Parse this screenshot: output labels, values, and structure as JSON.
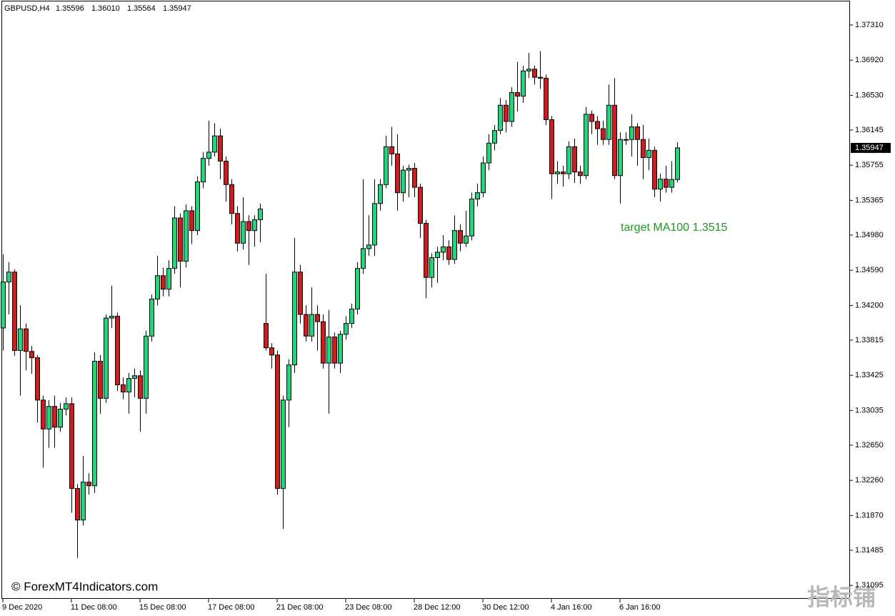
{
  "chart_data": {
    "type": "candlestick",
    "title": "GBPUSD,H4",
    "header_values": [
      "1.35596",
      "1.36010",
      "1.35564",
      "1.35947"
    ],
    "annotation": "target MA100 1.3515",
    "watermark": "© ForexMT4Indicators.com",
    "logo": "指标铺",
    "up_color": "#1fd67a",
    "down_color": "#d11a1a",
    "annotation_color": "#1e9a1e",
    "last_price": {
      "value": 1.35947,
      "label": "1.35947"
    },
    "ylim": [
      1.30946,
      1.37587
    ],
    "yticks": [
      {
        "value": 1.3731,
        "label": "1.37310"
      },
      {
        "value": 1.3692,
        "label": "1.36920"
      },
      {
        "value": 1.3653,
        "label": "1.36530"
      },
      {
        "value": 1.36145,
        "label": "1.36145"
      },
      {
        "value": 1.35755,
        "label": "1.35755"
      },
      {
        "value": 1.35365,
        "label": "1.35365"
      },
      {
        "value": 1.3498,
        "label": "1.34980"
      },
      {
        "value": 1.3459,
        "label": "1.34590"
      },
      {
        "value": 1.342,
        "label": "1.34200"
      },
      {
        "value": 1.33815,
        "label": "1.33815"
      },
      {
        "value": 1.33425,
        "label": "1.33425"
      },
      {
        "value": 1.33035,
        "label": "1.33035"
      },
      {
        "value": 1.3265,
        "label": "1.32650"
      },
      {
        "value": 1.3226,
        "label": "1.32260"
      },
      {
        "value": 1.3187,
        "label": "1.31870"
      },
      {
        "value": 1.31485,
        "label": "1.31485"
      },
      {
        "value": 1.31095,
        "label": "1.31095"
      }
    ],
    "categories": [
      "9 Dec 2020",
      null,
      null,
      null,
      null,
      null,
      null,
      null,
      null,
      null,
      null,
      null,
      "11 Dec 08:00",
      null,
      null,
      null,
      null,
      null,
      null,
      null,
      null,
      null,
      null,
      null,
      "15 Dec 08:00",
      null,
      null,
      null,
      null,
      null,
      null,
      null,
      null,
      null,
      null,
      null,
      "17 Dec 08:00",
      null,
      null,
      null,
      null,
      null,
      null,
      null,
      null,
      null,
      null,
      null,
      "21 Dec 08:00",
      null,
      null,
      null,
      null,
      null,
      null,
      null,
      null,
      null,
      null,
      null,
      "23 Dec 08:00",
      null,
      null,
      null,
      null,
      null,
      null,
      null,
      null,
      null,
      null,
      null,
      "28 Dec 12:00",
      null,
      null,
      null,
      null,
      null,
      null,
      null,
      null,
      null,
      null,
      null,
      "30 Dec 12:00",
      null,
      null,
      null,
      null,
      null,
      null,
      null,
      null,
      null,
      null,
      null,
      "4 Jan 16:00",
      null,
      null,
      null,
      null,
      null,
      null,
      null,
      null,
      null,
      null,
      null,
      "6 Jan 16:00",
      null,
      null,
      null,
      null,
      null,
      null,
      null,
      null,
      null,
      null
    ],
    "open": [
      1.3395,
      1.3446,
      1.3457,
      1.337,
      1.3394,
      1.3369,
      1.3362,
      1.3315,
      1.3283,
      1.3308,
      1.3285,
      1.3305,
      1.3311,
      1.3217,
      1.3182,
      1.3224,
      1.322,
      1.3358,
      1.3317,
      1.3406,
      1.3408,
      1.3332,
      1.3324,
      1.3339,
      1.3342,
      1.3317,
      1.3386,
      1.3427,
      1.3453,
      1.3438,
      1.3461,
      1.3517,
      1.3469,
      1.3525,
      1.3503,
      1.3557,
      1.3583,
      1.359,
      1.3608,
      1.358,
      1.3554,
      1.3522,
      1.3489,
      1.3513,
      1.3503,
      1.3515,
      1.34,
      1.3373,
      1.3365,
      1.3217,
      1.3315,
      1.3354,
      1.3457,
      1.341,
      1.3386,
      1.341,
      1.3402,
      1.3356,
      1.3385,
      1.3356,
      1.3388,
      1.34,
      1.3416,
      1.3461,
      1.3483,
      1.3487,
      1.3533,
      1.3554,
      1.3596,
      1.3588,
      1.3545,
      1.357,
      1.3572,
      1.3551,
      1.3511,
      1.3451,
      1.3473,
      1.3479,
      1.3485,
      1.3471,
      1.3503,
      1.3489,
      1.3497,
      1.3538,
      1.3545,
      1.3578,
      1.36,
      1.3614,
      1.3642,
      1.3624,
      1.3656,
      1.3652,
      1.368,
      1.3682,
      1.3673,
      1.3672,
      1.3626,
      1.3566,
      1.3568,
      1.3566,
      1.3596,
      1.3568,
      1.3564,
      1.3632,
      1.3624,
      1.3616,
      1.3604,
      1.3642,
      1.3564,
      1.3604,
      1.3604,
      1.3618,
      1.3604,
      1.3584,
      1.3592,
      1.3549,
      1.356,
      1.3551,
      1.35596
    ],
    "high": [
      1.3477,
      1.3468,
      1.346,
      1.342,
      1.34,
      1.3375,
      1.3365,
      1.332,
      1.3315,
      1.332,
      1.3312,
      1.3318,
      1.3318,
      1.3222,
      1.3253,
      1.3234,
      1.3368,
      1.3365,
      1.341,
      1.3442,
      1.3412,
      1.334,
      1.3345,
      1.335,
      1.3348,
      1.3392,
      1.3432,
      1.3475,
      1.3462,
      1.347,
      1.353,
      1.3522,
      1.3532,
      1.353,
      1.3563,
      1.359,
      1.3625,
      1.3622,
      1.3616,
      1.3585,
      1.356,
      1.353,
      1.354,
      1.352,
      1.352,
      1.3533,
      1.3455,
      1.3378,
      1.337,
      1.332,
      1.336,
      1.3495,
      1.3465,
      1.342,
      1.344,
      1.342,
      1.341,
      1.3415,
      1.339,
      1.3392,
      1.3408,
      1.3422,
      1.3468,
      1.356,
      1.352,
      1.356,
      1.356,
      1.3608,
      1.3618,
      1.361,
      1.3575,
      1.3576,
      1.3578,
      1.3555,
      1.3515,
      1.3478,
      1.3485,
      1.3498,
      1.3492,
      1.352,
      1.351,
      1.3525,
      1.3545,
      1.3555,
      1.3585,
      1.361,
      1.362,
      1.365,
      1.3648,
      1.3662,
      1.369,
      1.3686,
      1.37,
      1.3686,
      1.3702,
      1.3676,
      1.363,
      1.358,
      1.3575,
      1.3602,
      1.3605,
      1.3575,
      1.364,
      1.3636,
      1.363,
      1.3625,
      1.3665,
      1.3672,
      1.3612,
      1.3612,
      1.3632,
      1.3622,
      1.362,
      1.3605,
      1.3596,
      1.3566,
      1.3575,
      1.358,
      1.3601
    ],
    "low": [
      1.337,
      1.341,
      1.3364,
      1.332,
      1.3348,
      1.3344,
      1.329,
      1.324,
      1.3262,
      1.3262,
      1.328,
      1.3298,
      1.319,
      1.314,
      1.3176,
      1.321,
      1.3212,
      1.33,
      1.3312,
      1.3395,
      1.3325,
      1.3316,
      1.33,
      1.3318,
      1.328,
      1.33,
      1.338,
      1.342,
      1.343,
      1.343,
      1.3455,
      1.344,
      1.3462,
      1.3488,
      1.3498,
      1.355,
      1.3575,
      1.3585,
      1.356,
      1.3535,
      1.351,
      1.348,
      1.3482,
      1.3465,
      1.3485,
      1.349,
      1.337,
      1.335,
      1.321,
      1.3172,
      1.3285,
      1.3345,
      1.34,
      1.338,
      1.338,
      1.337,
      1.335,
      1.33,
      1.335,
      1.3345,
      1.3382,
      1.3395,
      1.341,
      1.3455,
      1.3475,
      1.3475,
      1.3525,
      1.355,
      1.3575,
      1.3525,
      1.3535,
      1.354,
      1.354,
      1.3495,
      1.3428,
      1.344,
      1.3445,
      1.347,
      1.3465,
      1.3466,
      1.348,
      1.3485,
      1.3492,
      1.353,
      1.354,
      1.357,
      1.3592,
      1.361,
      1.3612,
      1.3618,
      1.3635,
      1.3645,
      1.3672,
      1.3665,
      1.366,
      1.362,
      1.3538,
      1.3555,
      1.3552,
      1.356,
      1.3556,
      1.3555,
      1.356,
      1.361,
      1.3598,
      1.3598,
      1.3598,
      1.356,
      1.3533,
      1.3598,
      1.3585,
      1.3575,
      1.356,
      1.357,
      1.354,
      1.3535,
      1.3545,
      1.3545,
      1.35564
    ],
    "close": [
      1.3446,
      1.3457,
      1.337,
      1.3394,
      1.3369,
      1.3362,
      1.3315,
      1.3283,
      1.3308,
      1.3285,
      1.3305,
      1.3311,
      1.3217,
      1.3182,
      1.3224,
      1.322,
      1.3358,
      1.3317,
      1.3406,
      1.3408,
      1.3332,
      1.3324,
      1.3339,
      1.3342,
      1.3317,
      1.3386,
      1.3427,
      1.3453,
      1.3438,
      1.3461,
      1.3517,
      1.3469,
      1.3525,
      1.3503,
      1.3557,
      1.3583,
      1.359,
      1.3608,
      1.358,
      1.3554,
      1.3522,
      1.3489,
      1.3513,
      1.3503,
      1.3515,
      1.3527,
      1.3373,
      1.3365,
      1.3217,
      1.3315,
      1.3354,
      1.3457,
      1.341,
      1.3386,
      1.341,
      1.3402,
      1.3356,
      1.3385,
      1.3356,
      1.3388,
      1.34,
      1.3416,
      1.3461,
      1.3483,
      1.3487,
      1.3533,
      1.3554,
      1.3596,
      1.3588,
      1.3545,
      1.357,
      1.3572,
      1.3551,
      1.3511,
      1.3451,
      1.3473,
      1.3479,
      1.3485,
      1.3471,
      1.3503,
      1.3489,
      1.3497,
      1.3538,
      1.3545,
      1.3578,
      1.36,
      1.3614,
      1.3642,
      1.3624,
      1.3656,
      1.3652,
      1.368,
      1.3682,
      1.3673,
      1.3672,
      1.3626,
      1.3566,
      1.3568,
      1.3566,
      1.3596,
      1.3568,
      1.3564,
      1.3632,
      1.3624,
      1.3616,
      1.3604,
      1.3642,
      1.3564,
      1.3604,
      1.3604,
      1.3618,
      1.3604,
      1.3584,
      1.3592,
      1.3549,
      1.356,
      1.3551,
      1.35596,
      1.35947
    ]
  }
}
